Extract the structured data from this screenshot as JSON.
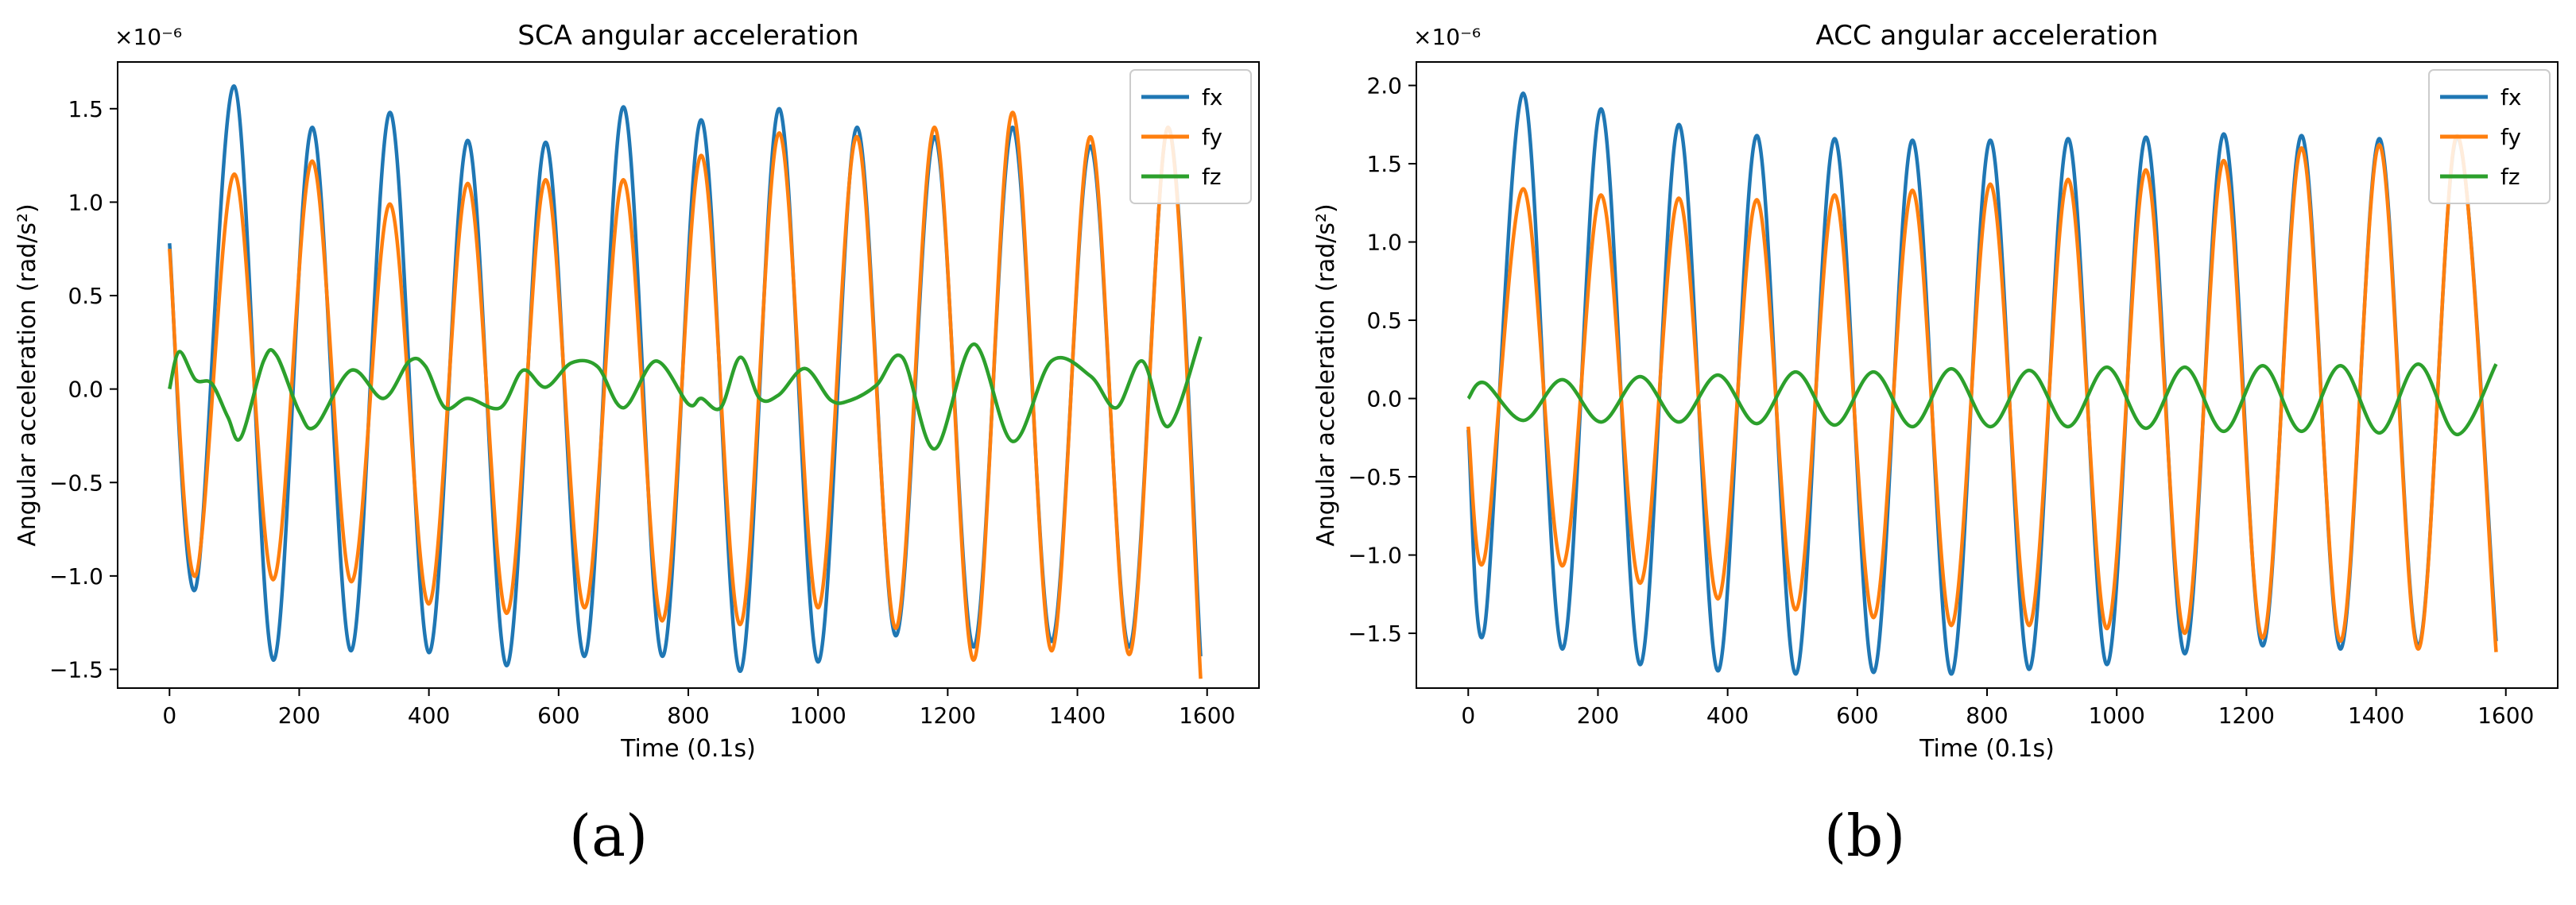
{
  "figure": {
    "panel_labels": [
      "(a)",
      "(b)"
    ]
  },
  "chart_data": [
    {
      "type": "line",
      "title": "SCA angular acceleration",
      "xlabel": "Time (0.1s)",
      "ylabel": "Angular acceleration   (rad/s²)",
      "xlim": [
        -80,
        1680
      ],
      "ylim": [
        -1.6,
        1.75
      ],
      "xticks": [
        0,
        200,
        400,
        600,
        800,
        1000,
        1200,
        1400,
        1600
      ],
      "xtick_labels": [
        "0",
        "200",
        "400",
        "600",
        "800",
        "1000",
        "1200",
        "1400",
        "1600"
      ],
      "yticks": [
        -1.5,
        -1.0,
        -0.5,
        0.0,
        0.5,
        1.0,
        1.5
      ],
      "ytick_labels": [
        "−1.5",
        "−1.0",
        "−0.5",
        "0.0",
        "0.5",
        "1.0",
        "1.5"
      ],
      "offset_label": "×10⁻⁶",
      "legend_position": "top-right",
      "series": [
        {
          "name": "fx",
          "color": "#1f77b4",
          "points": [
            [
              0,
              0.78
            ],
            [
              40,
              -1.07
            ],
            [
              100,
              1.62
            ],
            [
              160,
              -1.45
            ],
            [
              220,
              1.4
            ],
            [
              280,
              -1.4
            ],
            [
              340,
              1.48
            ],
            [
              400,
              -1.41
            ],
            [
              460,
              1.33
            ],
            [
              520,
              -1.48
            ],
            [
              580,
              1.32
            ],
            [
              640,
              -1.43
            ],
            [
              700,
              1.51
            ],
            [
              760,
              -1.43
            ],
            [
              820,
              1.44
            ],
            [
              880,
              -1.51
            ],
            [
              940,
              1.5
            ],
            [
              1000,
              -1.46
            ],
            [
              1060,
              1.4
            ],
            [
              1120,
              -1.32
            ],
            [
              1180,
              1.35
            ],
            [
              1240,
              -1.38
            ],
            [
              1300,
              1.4
            ],
            [
              1360,
              -1.35
            ],
            [
              1420,
              1.3
            ],
            [
              1480,
              -1.38
            ],
            [
              1540,
              1.4
            ],
            [
              1590,
              -1.43
            ]
          ]
        },
        {
          "name": "fy",
          "color": "#ff7f0e",
          "points": [
            [
              0,
              0.75
            ],
            [
              40,
              -1.0
            ],
            [
              100,
              1.15
            ],
            [
              160,
              -1.02
            ],
            [
              220,
              1.22
            ],
            [
              280,
              -1.03
            ],
            [
              340,
              0.99
            ],
            [
              400,
              -1.15
            ],
            [
              460,
              1.1
            ],
            [
              520,
              -1.2
            ],
            [
              580,
              1.12
            ],
            [
              640,
              -1.17
            ],
            [
              700,
              1.12
            ],
            [
              760,
              -1.24
            ],
            [
              820,
              1.25
            ],
            [
              880,
              -1.26
            ],
            [
              940,
              1.37
            ],
            [
              1000,
              -1.17
            ],
            [
              1060,
              1.35
            ],
            [
              1120,
              -1.28
            ],
            [
              1180,
              1.4
            ],
            [
              1240,
              -1.45
            ],
            [
              1300,
              1.48
            ],
            [
              1360,
              -1.4
            ],
            [
              1420,
              1.35
            ],
            [
              1480,
              -1.42
            ],
            [
              1540,
              1.4
            ],
            [
              1590,
              -1.55
            ]
          ]
        },
        {
          "name": "fz",
          "color": "#2ca02c",
          "points": [
            [
              0,
              0.0
            ],
            [
              15,
              0.2
            ],
            [
              40,
              0.05
            ],
            [
              65,
              0.03
            ],
            [
              90,
              -0.15
            ],
            [
              110,
              -0.26
            ],
            [
              145,
              0.15
            ],
            [
              165,
              0.18
            ],
            [
              200,
              -0.12
            ],
            [
              225,
              -0.2
            ],
            [
              280,
              0.1
            ],
            [
              330,
              -0.05
            ],
            [
              370,
              0.15
            ],
            [
              395,
              0.12
            ],
            [
              425,
              -0.1
            ],
            [
              460,
              -0.05
            ],
            [
              510,
              -0.1
            ],
            [
              545,
              0.1
            ],
            [
              580,
              0.01
            ],
            [
              620,
              0.14
            ],
            [
              660,
              0.12
            ],
            [
              700,
              -0.1
            ],
            [
              750,
              0.15
            ],
            [
              800,
              -0.08
            ],
            [
              820,
              -0.05
            ],
            [
              850,
              -0.1
            ],
            [
              880,
              0.17
            ],
            [
              910,
              -0.05
            ],
            [
              940,
              -0.03
            ],
            [
              980,
              0.11
            ],
            [
              1020,
              -0.06
            ],
            [
              1050,
              -0.06
            ],
            [
              1090,
              0.02
            ],
            [
              1130,
              0.17
            ],
            [
              1180,
              -0.32
            ],
            [
              1240,
              0.24
            ],
            [
              1300,
              -0.28
            ],
            [
              1360,
              0.15
            ],
            [
              1420,
              0.07
            ],
            [
              1460,
              -0.1
            ],
            [
              1500,
              0.15
            ],
            [
              1540,
              -0.2
            ],
            [
              1590,
              0.28
            ]
          ]
        }
      ]
    },
    {
      "type": "line",
      "title": "ACC angular acceleration",
      "xlabel": "Time (0.1s)",
      "ylabel": "Angular acceleration (rad/s²)",
      "xlim": [
        -80,
        1680
      ],
      "ylim": [
        -1.85,
        2.15
      ],
      "xticks": [
        0,
        200,
        400,
        600,
        800,
        1000,
        1200,
        1400,
        1600
      ],
      "xtick_labels": [
        "0",
        "200",
        "400",
        "600",
        "800",
        "1000",
        "1200",
        "1400",
        "1600"
      ],
      "yticks": [
        -1.5,
        -1.0,
        -0.5,
        0.0,
        0.5,
        1.0,
        1.5,
        2.0
      ],
      "ytick_labels": [
        "−1.5",
        "−1.0",
        "−0.5",
        "0.0",
        "0.5",
        "1.0",
        "1.5",
        "2.0"
      ],
      "offset_label": "×10⁻⁶",
      "legend_position": "top-right",
      "series": [
        {
          "name": "fx",
          "color": "#1f77b4",
          "points": [
            [
              0,
              -0.2
            ],
            [
              25,
              -1.47
            ],
            [
              85,
              1.95
            ],
            [
              145,
              -1.6
            ],
            [
              205,
              1.85
            ],
            [
              265,
              -1.7
            ],
            [
              325,
              1.75
            ],
            [
              385,
              -1.74
            ],
            [
              445,
              1.68
            ],
            [
              505,
              -1.76
            ],
            [
              565,
              1.66
            ],
            [
              625,
              -1.75
            ],
            [
              685,
              1.65
            ],
            [
              745,
              -1.76
            ],
            [
              805,
              1.65
            ],
            [
              865,
              -1.73
            ],
            [
              925,
              1.66
            ],
            [
              985,
              -1.7
            ],
            [
              1045,
              1.67
            ],
            [
              1105,
              -1.63
            ],
            [
              1165,
              1.69
            ],
            [
              1225,
              -1.58
            ],
            [
              1285,
              1.68
            ],
            [
              1345,
              -1.6
            ],
            [
              1405,
              1.66
            ],
            [
              1465,
              -1.58
            ],
            [
              1525,
              1.67
            ],
            [
              1585,
              -1.55
            ]
          ]
        },
        {
          "name": "fy",
          "color": "#ff7f0e",
          "points": [
            [
              0,
              -0.18
            ],
            [
              25,
              -1.02
            ],
            [
              85,
              1.34
            ],
            [
              145,
              -1.07
            ],
            [
              205,
              1.3
            ],
            [
              265,
              -1.18
            ],
            [
              325,
              1.28
            ],
            [
              385,
              -1.28
            ],
            [
              445,
              1.27
            ],
            [
              505,
              -1.35
            ],
            [
              565,
              1.3
            ],
            [
              625,
              -1.4
            ],
            [
              685,
              1.33
            ],
            [
              745,
              -1.45
            ],
            [
              805,
              1.37
            ],
            [
              865,
              -1.45
            ],
            [
              925,
              1.4
            ],
            [
              985,
              -1.47
            ],
            [
              1045,
              1.46
            ],
            [
              1105,
              -1.5
            ],
            [
              1165,
              1.52
            ],
            [
              1225,
              -1.53
            ],
            [
              1285,
              1.6
            ],
            [
              1345,
              -1.55
            ],
            [
              1405,
              1.62
            ],
            [
              1465,
              -1.6
            ],
            [
              1525,
              1.68
            ],
            [
              1585,
              -1.62
            ]
          ]
        },
        {
          "name": "fz",
          "color": "#2ca02c",
          "points": [
            [
              0,
              0.0
            ],
            [
              25,
              0.1
            ],
            [
              85,
              -0.14
            ],
            [
              145,
              0.12
            ],
            [
              205,
              -0.15
            ],
            [
              265,
              0.14
            ],
            [
              325,
              -0.15
            ],
            [
              385,
              0.15
            ],
            [
              445,
              -0.16
            ],
            [
              505,
              0.17
            ],
            [
              565,
              -0.17
            ],
            [
              625,
              0.17
            ],
            [
              685,
              -0.18
            ],
            [
              745,
              0.19
            ],
            [
              805,
              -0.18
            ],
            [
              865,
              0.18
            ],
            [
              925,
              -0.18
            ],
            [
              985,
              0.2
            ],
            [
              1045,
              -0.19
            ],
            [
              1105,
              0.2
            ],
            [
              1165,
              -0.21
            ],
            [
              1225,
              0.21
            ],
            [
              1285,
              -0.21
            ],
            [
              1345,
              0.21
            ],
            [
              1405,
              -0.22
            ],
            [
              1465,
              0.22
            ],
            [
              1525,
              -0.23
            ],
            [
              1585,
              0.22
            ]
          ]
        }
      ]
    }
  ]
}
